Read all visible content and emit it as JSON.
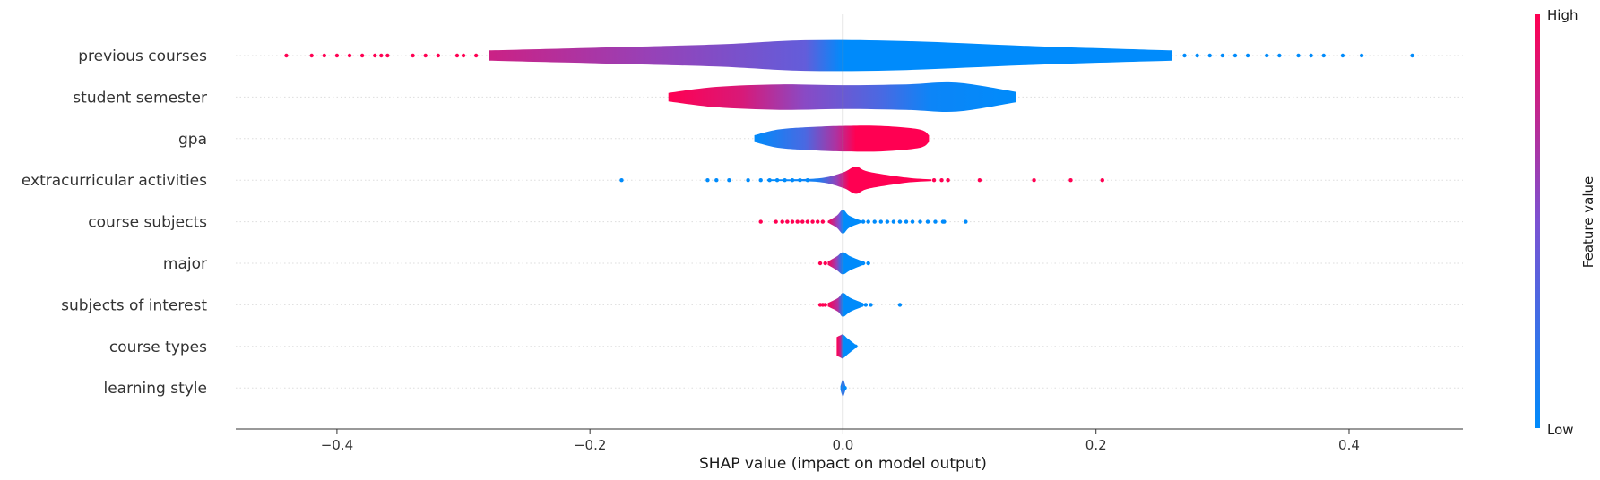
{
  "chart_data": {
    "type": "violin",
    "xlabel": "SHAP value (impact on model output)",
    "xlim": [
      -0.48,
      0.49
    ],
    "xticks": [
      -0.4,
      -0.2,
      0.0,
      0.2,
      0.4
    ],
    "xtick_labels": [
      "−0.4",
      "−0.2",
      "0.0",
      "0.2",
      "0.4"
    ],
    "colorbar": {
      "title": "Feature value",
      "high_label": "High",
      "low_label": "Low",
      "high_color": "#ff0052",
      "low_color": "#008bfb"
    },
    "features": [
      {
        "name": "previous courses",
        "profile": [
          [
            -0.28,
            0.3
          ],
          [
            -0.2,
            0.45
          ],
          [
            -0.1,
            0.65
          ],
          [
            -0.03,
            0.9
          ],
          [
            0.05,
            0.85
          ],
          [
            0.15,
            0.55
          ],
          [
            0.26,
            0.3
          ]
        ],
        "color_stops": [
          [
            -0.28,
            0.8
          ],
          [
            -0.15,
            0.6
          ],
          [
            -0.03,
            0.4
          ],
          [
            0.0,
            0.0
          ],
          [
            0.26,
            0.0
          ]
        ],
        "points": [
          {
            "x": -0.44,
            "c": 1
          },
          {
            "x": -0.42,
            "c": 1
          },
          {
            "x": -0.41,
            "c": 1
          },
          {
            "x": -0.4,
            "c": 1
          },
          {
            "x": -0.39,
            "c": 1
          },
          {
            "x": -0.38,
            "c": 1
          },
          {
            "x": -0.37,
            "c": 1
          },
          {
            "x": -0.365,
            "c": 1
          },
          {
            "x": -0.36,
            "c": 1
          },
          {
            "x": -0.34,
            "c": 1
          },
          {
            "x": -0.33,
            "c": 1
          },
          {
            "x": -0.32,
            "c": 1
          },
          {
            "x": -0.305,
            "c": 1
          },
          {
            "x": -0.3,
            "c": 1
          },
          {
            "x": -0.29,
            "c": 1
          },
          {
            "x": 0.27,
            "c": 0
          },
          {
            "x": 0.28,
            "c": 0
          },
          {
            "x": 0.29,
            "c": 0
          },
          {
            "x": 0.3,
            "c": 0
          },
          {
            "x": 0.31,
            "c": 0
          },
          {
            "x": 0.32,
            "c": 0
          },
          {
            "x": 0.335,
            "c": 0
          },
          {
            "x": 0.345,
            "c": 0
          },
          {
            "x": 0.36,
            "c": 0
          },
          {
            "x": 0.37,
            "c": 0
          },
          {
            "x": 0.38,
            "c": 0
          },
          {
            "x": 0.395,
            "c": 0
          },
          {
            "x": 0.41,
            "c": 0
          },
          {
            "x": 0.45,
            "c": 0
          }
        ]
      },
      {
        "name": "student semester",
        "profile": [
          [
            -0.138,
            0.25
          ],
          [
            -0.1,
            0.6
          ],
          [
            -0.05,
            0.75
          ],
          [
            0.0,
            0.7
          ],
          [
            0.05,
            0.75
          ],
          [
            0.09,
            0.85
          ],
          [
            0.137,
            0.3
          ]
        ],
        "color_stops": [
          [
            -0.138,
            1.0
          ],
          [
            -0.08,
            0.85
          ],
          [
            -0.03,
            0.55
          ],
          [
            0.03,
            0.3
          ],
          [
            0.07,
            0.05
          ],
          [
            0.137,
            0.0
          ]
        ],
        "points": []
      },
      {
        "name": "gpa",
        "profile": [
          [
            -0.07,
            0.2
          ],
          [
            -0.05,
            0.55
          ],
          [
            -0.02,
            0.7
          ],
          [
            0.0,
            0.75
          ],
          [
            0.03,
            0.75
          ],
          [
            0.06,
            0.55
          ],
          [
            0.068,
            0.2
          ]
        ],
        "color_stops": [
          [
            -0.07,
            0.0
          ],
          [
            -0.03,
            0.3
          ],
          [
            -0.005,
            0.7
          ],
          [
            0.01,
            1.0
          ],
          [
            0.068,
            1.0
          ]
        ],
        "points": []
      },
      {
        "name": "extracurricular activities",
        "profile": [
          [
            -0.06,
            0.05
          ],
          [
            -0.02,
            0.1
          ],
          [
            0.0,
            0.45
          ],
          [
            0.01,
            0.8
          ],
          [
            0.02,
            0.5
          ],
          [
            0.05,
            0.15
          ],
          [
            0.07,
            0.05
          ]
        ],
        "color_stops": [
          [
            -0.06,
            0.0
          ],
          [
            -0.02,
            0.1
          ],
          [
            -0.005,
            0.6
          ],
          [
            0.005,
            1.0
          ],
          [
            0.07,
            1.0
          ]
        ],
        "points": [
          {
            "x": -0.175,
            "c": 0
          },
          {
            "x": -0.107,
            "c": 0
          },
          {
            "x": -0.1,
            "c": 0
          },
          {
            "x": -0.09,
            "c": 0
          },
          {
            "x": -0.075,
            "c": 0
          },
          {
            "x": -0.065,
            "c": 0
          },
          {
            "x": -0.058,
            "c": 0
          },
          {
            "x": -0.052,
            "c": 0
          },
          {
            "x": -0.046,
            "c": 0
          },
          {
            "x": -0.04,
            "c": 0
          },
          {
            "x": -0.034,
            "c": 0
          },
          {
            "x": -0.028,
            "c": 0
          },
          {
            "x": 0.072,
            "c": 1
          },
          {
            "x": 0.078,
            "c": 1
          },
          {
            "x": 0.083,
            "c": 1
          },
          {
            "x": 0.108,
            "c": 1
          },
          {
            "x": 0.151,
            "c": 1
          },
          {
            "x": 0.18,
            "c": 1
          },
          {
            "x": 0.205,
            "c": 1
          }
        ]
      },
      {
        "name": "course subjects",
        "profile": [
          [
            -0.012,
            0.05
          ],
          [
            -0.005,
            0.35
          ],
          [
            0.0,
            0.7
          ],
          [
            0.005,
            0.35
          ],
          [
            0.015,
            0.05
          ]
        ],
        "color_stops": [
          [
            -0.012,
            1.0
          ],
          [
            -0.003,
            0.5
          ],
          [
            0.0,
            0.0
          ],
          [
            0.015,
            0.0
          ]
        ],
        "points": [
          {
            "x": -0.065,
            "c": 1
          },
          {
            "x": -0.053,
            "c": 1
          },
          {
            "x": -0.048,
            "c": 1
          },
          {
            "x": -0.044,
            "c": 1
          },
          {
            "x": -0.04,
            "c": 1
          },
          {
            "x": -0.036,
            "c": 1
          },
          {
            "x": -0.032,
            "c": 1
          },
          {
            "x": -0.028,
            "c": 1
          },
          {
            "x": -0.024,
            "c": 1
          },
          {
            "x": -0.02,
            "c": 1
          },
          {
            "x": -0.016,
            "c": 1
          },
          {
            "x": 0.016,
            "c": 0
          },
          {
            "x": 0.02,
            "c": 0
          },
          {
            "x": 0.025,
            "c": 0
          },
          {
            "x": 0.03,
            "c": 0
          },
          {
            "x": 0.035,
            "c": 0
          },
          {
            "x": 0.04,
            "c": 0
          },
          {
            "x": 0.045,
            "c": 0
          },
          {
            "x": 0.05,
            "c": 0
          },
          {
            "x": 0.055,
            "c": 0
          },
          {
            "x": 0.061,
            "c": 0
          },
          {
            "x": 0.067,
            "c": 0
          },
          {
            "x": 0.073,
            "c": 0
          },
          {
            "x": 0.079,
            "c": 0
          },
          {
            "x": 0.08,
            "c": 0
          },
          {
            "x": 0.097,
            "c": 0
          }
        ]
      },
      {
        "name": "major",
        "profile": [
          [
            -0.012,
            0.1
          ],
          [
            -0.005,
            0.4
          ],
          [
            0.0,
            0.65
          ],
          [
            0.006,
            0.4
          ],
          [
            0.016,
            0.1
          ]
        ],
        "color_stops": [
          [
            -0.012,
            1.0
          ],
          [
            -0.005,
            0.6
          ],
          [
            0.0,
            0.0
          ],
          [
            0.016,
            0.0
          ]
        ],
        "points": [
          {
            "x": -0.018,
            "c": 1
          },
          {
            "x": -0.014,
            "c": 1
          },
          {
            "x": 0.016,
            "c": 0
          },
          {
            "x": 0.02,
            "c": 0
          }
        ]
      },
      {
        "name": "subjects of interest",
        "profile": [
          [
            -0.012,
            0.1
          ],
          [
            -0.004,
            0.4
          ],
          [
            0.0,
            0.7
          ],
          [
            0.006,
            0.4
          ],
          [
            0.016,
            0.1
          ]
        ],
        "color_stops": [
          [
            -0.012,
            1.0
          ],
          [
            -0.004,
            0.7
          ],
          [
            0.0,
            0.0
          ],
          [
            0.016,
            0.0
          ]
        ],
        "points": [
          {
            "x": -0.018,
            "c": 1
          },
          {
            "x": -0.016,
            "c": 1
          },
          {
            "x": -0.014,
            "c": 1
          },
          {
            "x": 0.015,
            "c": 0
          },
          {
            "x": 0.018,
            "c": 0
          },
          {
            "x": 0.022,
            "c": 0
          },
          {
            "x": 0.045,
            "c": 0
          }
        ]
      },
      {
        "name": "course types",
        "profile": [
          [
            -0.005,
            0.55
          ],
          [
            -0.002,
            0.65
          ],
          [
            0.0,
            0.7
          ],
          [
            0.004,
            0.45
          ],
          [
            0.01,
            0.1
          ]
        ],
        "color_stops": [
          [
            -0.005,
            1.0
          ],
          [
            -0.002,
            0.8
          ],
          [
            0.0,
            0.0
          ],
          [
            0.01,
            0.0
          ]
        ],
        "points": [
          {
            "x": 0.01,
            "c": 0
          }
        ]
      },
      {
        "name": "learning style",
        "profile": [
          [
            -0.002,
            0.1
          ],
          [
            0.0,
            0.5
          ],
          [
            0.002,
            0.1
          ]
        ],
        "color_stops": [
          [
            -0.002,
            0.0
          ],
          [
            0.0,
            0.3
          ],
          [
            0.002,
            0.0
          ]
        ],
        "points": [
          {
            "x": 0.001,
            "c": 0
          },
          {
            "x": 0.0015,
            "c": 0
          }
        ]
      }
    ]
  }
}
